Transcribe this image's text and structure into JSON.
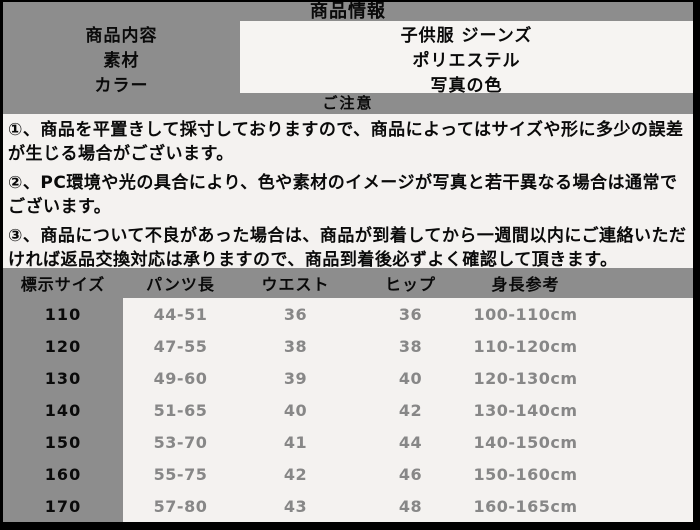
{
  "colors": {
    "frame": "#000000",
    "band": "#8d8d8d",
    "panel": "#f4f2f0",
    "box": "#f6f4f2",
    "text": "#0a0a0a",
    "muted": "#878787"
  },
  "header": {
    "title": "商品情報",
    "labels": [
      "商品内容",
      "素材",
      "カラー"
    ],
    "values": [
      "子供服 ジーンズ",
      "ポリエステル",
      "写真の色"
    ]
  },
  "notice": {
    "title": "ご注意",
    "items": [
      "①、商品を平置きして採寸しておりますので、商品によってはサイズや形に多少の誤差が生じる場合がございます。",
      "②、PC環境や光の具合により、色や素材のイメージが写真と若干異なる場合は通常でございます。",
      "③、商品について不良があった場合は、商品が到着してから一週間以内にご連絡いただければ返品交換対応は承りますので、商品到着後必ずよく確認して頂きます。"
    ]
  },
  "size_table": {
    "columns": [
      "標示サイズ",
      "パンツ長",
      "ウエスト",
      "ヒップ",
      "身長参考"
    ],
    "rows": [
      [
        "110",
        "44-51",
        "36",
        "36",
        "100-110cm"
      ],
      [
        "120",
        "47-55",
        "38",
        "38",
        "110-120cm"
      ],
      [
        "130",
        "49-60",
        "39",
        "40",
        "120-130cm"
      ],
      [
        "140",
        "51-65",
        "40",
        "42",
        "130-140cm"
      ],
      [
        "150",
        "53-70",
        "41",
        "44",
        "140-150cm"
      ],
      [
        "160",
        "55-75",
        "42",
        "46",
        "150-160cm"
      ],
      [
        "170",
        "57-80",
        "43",
        "48",
        "160-165cm"
      ]
    ]
  }
}
